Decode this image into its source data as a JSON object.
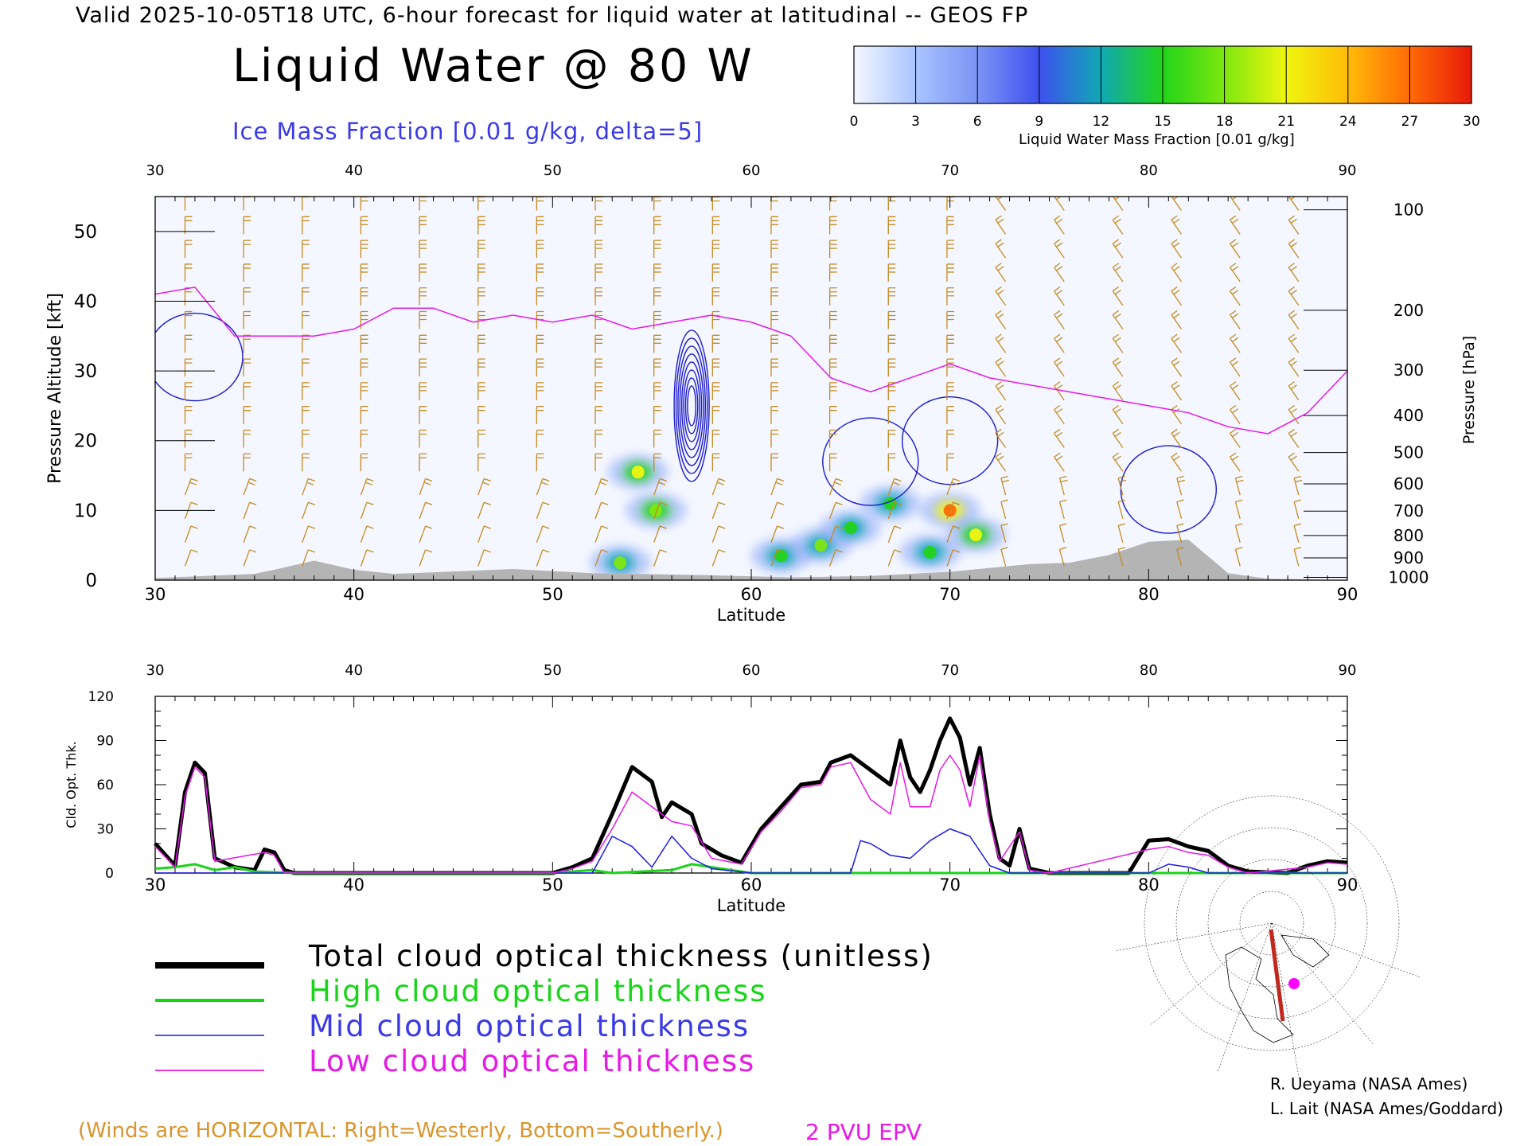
{
  "header": {
    "valid_line": "Valid 2025-10-05T18 UTC, 6-hour forecast for liquid water at latitudinal -- GEOS FP",
    "title": "Liquid Water @ 80 W",
    "ice_label": "Ice Mass Fraction [0.01 g/kg, delta=5]"
  },
  "colorbar": {
    "ticks": [
      "0",
      "3",
      "6",
      "9",
      "12",
      "15",
      "18",
      "21",
      "24",
      "27",
      "30"
    ],
    "label": "Liquid Water Mass Fraction [0.01 g/kg]",
    "colors": [
      "#f4f7ff",
      "#a9c4ff",
      "#7b94f5",
      "#3e50ee",
      "#10a8b4",
      "#22d41a",
      "#7ee70f",
      "#f0f50f",
      "#ffbb08",
      "#ff6a06",
      "#e81a0a"
    ]
  },
  "chart_data": [
    {
      "type": "heatmap",
      "xlabel": "Latitude",
      "ylabel": "Pressure Altitude [kft]",
      "right_label": "Pressure [hPa]",
      "xlim": [
        30,
        90
      ],
      "ylim": [
        0,
        55
      ],
      "x_ticks": [
        "30",
        "40",
        "50",
        "60",
        "70",
        "80",
        "90"
      ],
      "y_ticks": [
        "0",
        "10",
        "20",
        "30",
        "40",
        "50"
      ],
      "pressure_ticks": [
        {
          "label": "100",
          "kft": 53.1
        },
        {
          "label": "200",
          "kft": 38.7
        },
        {
          "label": "300",
          "kft": 30.1
        },
        {
          "label": "400",
          "kft": 23.6
        },
        {
          "label": "500",
          "kft": 18.3
        },
        {
          "label": "600",
          "kft": 13.8
        },
        {
          "label": "700",
          "kft": 9.9
        },
        {
          "label": "800",
          "kft": 6.4
        },
        {
          "label": "900",
          "kft": 3.2
        },
        {
          "label": "1000",
          "kft": 0.4
        }
      ],
      "epv_2pvu_line": [
        [
          30,
          41
        ],
        [
          32,
          42
        ],
        [
          34,
          35
        ],
        [
          36,
          35
        ],
        [
          38,
          35
        ],
        [
          40,
          36
        ],
        [
          42,
          39
        ],
        [
          44,
          39
        ],
        [
          46,
          37
        ],
        [
          48,
          38
        ],
        [
          50,
          37
        ],
        [
          52,
          38
        ],
        [
          54,
          36
        ],
        [
          56,
          37
        ],
        [
          58,
          38
        ],
        [
          60,
          37
        ],
        [
          62,
          35
        ],
        [
          64,
          29
        ],
        [
          66,
          27
        ],
        [
          68,
          29
        ],
        [
          70,
          31
        ],
        [
          72,
          29
        ],
        [
          74,
          28
        ],
        [
          76,
          27
        ],
        [
          78,
          26
        ],
        [
          80,
          25
        ],
        [
          82,
          24
        ],
        [
          84,
          22
        ],
        [
          86,
          21
        ],
        [
          88,
          24
        ],
        [
          90,
          30
        ]
      ],
      "liquid_water_blobs": [
        {
          "lat": 54.3,
          "kft": 15.5,
          "value": 20
        },
        {
          "lat": 55.2,
          "kft": 10,
          "value": 18
        },
        {
          "lat": 53.4,
          "kft": 2.5,
          "value": 17
        },
        {
          "lat": 61.5,
          "kft": 3.5,
          "value": 16
        },
        {
          "lat": 63.5,
          "kft": 5,
          "value": 17
        },
        {
          "lat": 65,
          "kft": 7.5,
          "value": 16
        },
        {
          "lat": 67,
          "kft": 11,
          "value": 15
        },
        {
          "lat": 70,
          "kft": 10,
          "value": 27
        },
        {
          "lat": 71.3,
          "kft": 6.5,
          "value": 21
        },
        {
          "lat": 69,
          "kft": 4,
          "value": 15
        }
      ],
      "ice_contours": [
        {
          "lat": 57,
          "kft": 25,
          "value": 45
        },
        {
          "lat": 32,
          "kft": 32,
          "value": 5
        },
        {
          "lat": 81,
          "kft": 13,
          "value": 5
        },
        {
          "lat": 66,
          "kft": 17,
          "value": 5
        },
        {
          "lat": 70,
          "kft": 20,
          "value": 5
        }
      ],
      "terrain": [
        [
          30,
          0.3
        ],
        [
          35,
          0.9
        ],
        [
          36,
          1.5
        ],
        [
          38,
          2.8
        ],
        [
          40,
          1.5
        ],
        [
          42,
          0.9
        ],
        [
          48,
          1.6
        ],
        [
          52,
          1.0
        ],
        [
          58,
          0.7
        ],
        [
          62,
          0.4
        ],
        [
          66,
          0.6
        ],
        [
          70,
          1.2
        ],
        [
          74,
          2.3
        ],
        [
          76,
          2.5
        ],
        [
          78,
          3.6
        ],
        [
          80,
          5.5
        ],
        [
          82,
          5.8
        ],
        [
          84,
          1.0
        ],
        [
          86,
          0.2
        ],
        [
          90,
          0
        ]
      ]
    },
    {
      "type": "line",
      "xlabel": "Latitude",
      "ylabel": "Cld. Opt. Thk.",
      "xlim": [
        30,
        90
      ],
      "ylim": [
        0,
        120
      ],
      "x_ticks": [
        "30",
        "40",
        "50",
        "60",
        "70",
        "80",
        "90"
      ],
      "y_ticks": [
        "0",
        "30",
        "60",
        "90",
        "120"
      ],
      "series": [
        {
          "name": "Total cloud optical thickness (unitless)",
          "color": "#000000",
          "width": 5,
          "points": [
            [
              30,
              20
            ],
            [
              31,
              5
            ],
            [
              31.5,
              55
            ],
            [
              32,
              75
            ],
            [
              32.5,
              68
            ],
            [
              33,
              10
            ],
            [
              34,
              4
            ],
            [
              35,
              2
            ],
            [
              35.5,
              16
            ],
            [
              36,
              14
            ],
            [
              36.5,
              2
            ],
            [
              37,
              0
            ],
            [
              45,
              0
            ],
            [
              50,
              0
            ],
            [
              51,
              4
            ],
            [
              52,
              10
            ],
            [
              53,
              40
            ],
            [
              54,
              72
            ],
            [
              55,
              62
            ],
            [
              55.5,
              38
            ],
            [
              56,
              48
            ],
            [
              57,
              40
            ],
            [
              57.5,
              20
            ],
            [
              58.5,
              12
            ],
            [
              59.5,
              7
            ],
            [
              60.5,
              30
            ],
            [
              61.5,
              45
            ],
            [
              62.5,
              60
            ],
            [
              63.5,
              62
            ],
            [
              64,
              75
            ],
            [
              65,
              80
            ],
            [
              66,
              70
            ],
            [
              67,
              60
            ],
            [
              67.5,
              90
            ],
            [
              68,
              65
            ],
            [
              68.5,
              55
            ],
            [
              69,
              70
            ],
            [
              69.5,
              90
            ],
            [
              70,
              105
            ],
            [
              70.5,
              92
            ],
            [
              71,
              60
            ],
            [
              71.5,
              85
            ],
            [
              72,
              40
            ],
            [
              72.5,
              10
            ],
            [
              73,
              5
            ],
            [
              73.5,
              30
            ],
            [
              74,
              3
            ],
            [
              75,
              0
            ],
            [
              79,
              0
            ],
            [
              80,
              22
            ],
            [
              81,
              23
            ],
            [
              82,
              18
            ],
            [
              83,
              15
            ],
            [
              84,
              5
            ],
            [
              85,
              1
            ],
            [
              87,
              0
            ],
            [
              88,
              5
            ],
            [
              89,
              8
            ],
            [
              90,
              7
            ]
          ]
        },
        {
          "name": "High cloud optical thickness",
          "color": "#19d419",
          "width": 3,
          "points": [
            [
              30,
              3
            ],
            [
              31,
              4
            ],
            [
              32,
              6
            ],
            [
              33,
              2
            ],
            [
              34,
              4
            ],
            [
              35,
              1
            ],
            [
              37,
              0
            ],
            [
              50,
              0
            ],
            [
              52,
              2
            ],
            [
              53,
              0
            ],
            [
              56,
              2
            ],
            [
              57,
              6
            ],
            [
              58,
              4
            ],
            [
              59,
              2
            ],
            [
              60,
              0
            ],
            [
              90,
              0
            ]
          ]
        },
        {
          "name": "Mid cloud optical thickness",
          "color": "#1a1ae6",
          "width": 1.5,
          "points": [
            [
              30,
              0
            ],
            [
              52,
              0
            ],
            [
              53,
              25
            ],
            [
              54,
              18
            ],
            [
              55,
              4
            ],
            [
              56,
              25
            ],
            [
              57,
              10
            ],
            [
              58,
              3
            ],
            [
              60,
              0
            ],
            [
              65,
              0
            ],
            [
              65.5,
              22
            ],
            [
              66,
              20
            ],
            [
              67,
              12
            ],
            [
              68,
              10
            ],
            [
              69,
              22
            ],
            [
              70,
              30
            ],
            [
              71,
              25
            ],
            [
              72,
              5
            ],
            [
              73,
              0
            ],
            [
              80,
              0
            ],
            [
              81,
              6
            ],
            [
              82,
              4
            ],
            [
              83,
              0
            ],
            [
              90,
              0
            ]
          ]
        },
        {
          "name": "Low cloud optical thickness",
          "color": "#e619e6",
          "width": 1.5,
          "points": [
            [
              30,
              18
            ],
            [
              31,
              4
            ],
            [
              31.5,
              52
            ],
            [
              32,
              72
            ],
            [
              32.5,
              65
            ],
            [
              33,
              8
            ],
            [
              35.5,
              14
            ],
            [
              36,
              12
            ],
            [
              36.5,
              0
            ],
            [
              50,
              0
            ],
            [
              51,
              3
            ],
            [
              52,
              8
            ],
            [
              53,
              30
            ],
            [
              54,
              55
            ],
            [
              55,
              45
            ],
            [
              56,
              35
            ],
            [
              57,
              32
            ],
            [
              58,
              10
            ],
            [
              59.5,
              6
            ],
            [
              60.5,
              28
            ],
            [
              61.5,
              42
            ],
            [
              62.5,
              58
            ],
            [
              63.5,
              60
            ],
            [
              64,
              72
            ],
            [
              65,
              75
            ],
            [
              66,
              50
            ],
            [
              67,
              40
            ],
            [
              67.5,
              75
            ],
            [
              68,
              45
            ],
            [
              69,
              45
            ],
            [
              69.5,
              70
            ],
            [
              70,
              80
            ],
            [
              70.5,
              70
            ],
            [
              71,
              45
            ],
            [
              71.5,
              80
            ],
            [
              72,
              35
            ],
            [
              72.5,
              8
            ],
            [
              73.5,
              28
            ],
            [
              74,
              2
            ],
            [
              75,
              0
            ],
            [
              80,
              16
            ],
            [
              81,
              18
            ],
            [
              82,
              14
            ],
            [
              83,
              12
            ],
            [
              84,
              4
            ],
            [
              85,
              0
            ],
            [
              88,
              4
            ],
            [
              89,
              7
            ],
            [
              90,
              6
            ]
          ]
        }
      ]
    }
  ],
  "legend": [
    {
      "label": "Total cloud optical thickness (unitless)",
      "color": "#000000"
    },
    {
      "label": "High cloud optical thickness",
      "color": "#19d419"
    },
    {
      "label": "Mid cloud optical thickness",
      "color": "#3a3ae6"
    },
    {
      "label": "Low cloud optical thickness",
      "color": "#e619e6"
    }
  ],
  "notes": {
    "winds": "(Winds are HORIZONTAL: Right=Westerly, Bottom=Southerly.)",
    "pvu": "2 PVU EPV"
  },
  "credits": [
    "R. Ueyama (NASA Ames)",
    "L. Lait (NASA Ames/Goddard)"
  ]
}
